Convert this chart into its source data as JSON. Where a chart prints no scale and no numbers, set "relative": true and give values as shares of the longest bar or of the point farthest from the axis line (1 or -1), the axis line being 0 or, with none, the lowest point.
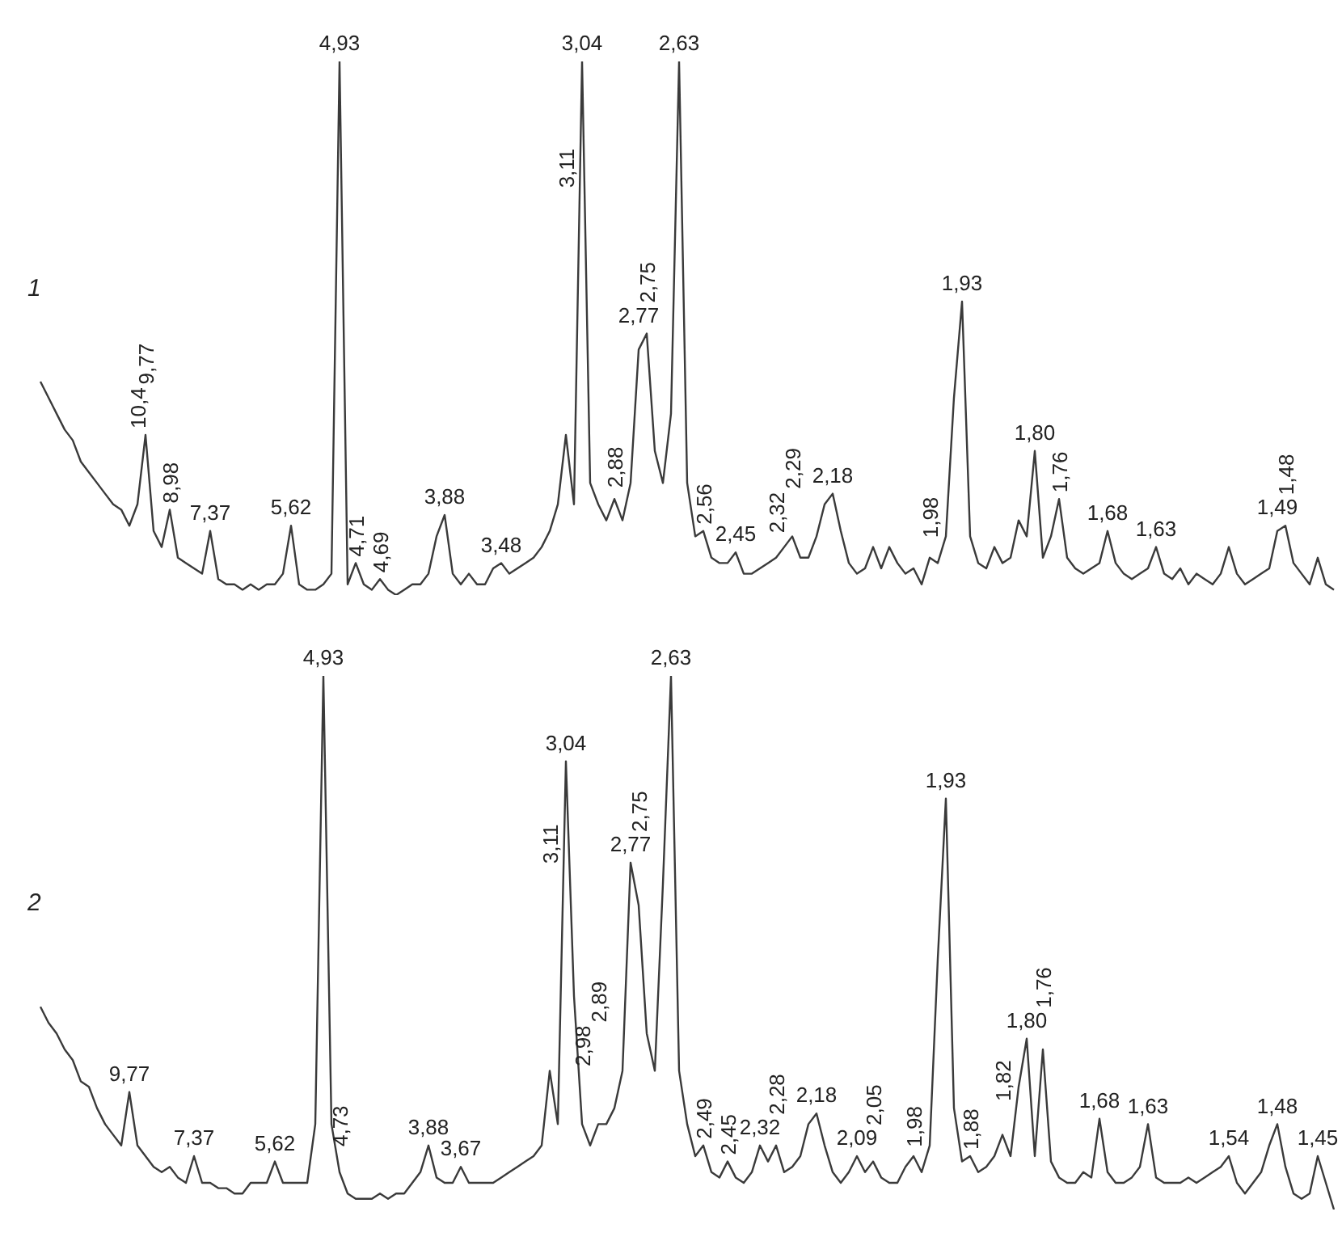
{
  "chart_data": [
    {
      "type": "line",
      "relative": true,
      "legend": false,
      "marker": "none",
      "annotations": [
        "1"
      ],
      "categories": [
        null,
        null,
        null,
        null,
        null,
        null,
        null,
        null,
        null,
        null,
        null,
        null,
        "10,4",
        "9,77",
        null,
        null,
        "8,98",
        null,
        null,
        null,
        null,
        "7,37",
        null,
        null,
        null,
        null,
        null,
        null,
        null,
        null,
        null,
        "5,62",
        null,
        null,
        null,
        null,
        null,
        "4,93",
        null,
        "4,71",
        null,
        null,
        "4,69",
        null,
        null,
        null,
        null,
        null,
        null,
        null,
        "3,88",
        null,
        null,
        null,
        null,
        null,
        null,
        "3,48",
        null,
        null,
        null,
        null,
        null,
        null,
        null,
        "3,11",
        null,
        "3,04",
        null,
        null,
        null,
        "2,88",
        null,
        null,
        "2,77",
        "2,75",
        null,
        null,
        null,
        "2,63",
        null,
        null,
        "2,56",
        null,
        null,
        null,
        "2,45",
        null,
        null,
        null,
        null,
        "2,32",
        null,
        "2,29",
        null,
        null,
        null,
        null,
        "2,18",
        null,
        null,
        null,
        null,
        null,
        null,
        null,
        null,
        null,
        null,
        null,
        "1,98",
        null,
        null,
        null,
        "1,93",
        null,
        null,
        null,
        null,
        null,
        null,
        null,
        null,
        "1,80",
        null,
        null,
        "1,76",
        null,
        null,
        null,
        null,
        null,
        "1,68",
        null,
        null,
        null,
        null,
        null,
        "1,63",
        null,
        null,
        null,
        null,
        null,
        null,
        null,
        null,
        null,
        null,
        null,
        null,
        null,
        null,
        "1,49",
        "1,48",
        null,
        null,
        null,
        null,
        null,
        null
      ],
      "series": [
        {
          "color": "#3a3a3a",
          "values": [
            0.4,
            0.37,
            0.34,
            0.31,
            0.29,
            0.25,
            0.23,
            0.21,
            0.19,
            0.17,
            0.16,
            0.13,
            0.17,
            0.3,
            0.12,
            0.09,
            0.16,
            0.07,
            0.06,
            0.05,
            0.04,
            0.12,
            0.03,
            0.02,
            0.02,
            0.01,
            0.02,
            0.01,
            0.02,
            0.02,
            0.04,
            0.13,
            0.02,
            0.01,
            0.01,
            0.02,
            0.04,
            1,
            0.02,
            0.06,
            0.02,
            0.01,
            0.03,
            0.01,
            0,
            0.01,
            0.02,
            0.02,
            0.04,
            0.11,
            0.15,
            0.04,
            0.02,
            0.04,
            0.02,
            0.02,
            0.05,
            0.06,
            0.04,
            0.05,
            0.06,
            0.07,
            0.09,
            0.12,
            0.17,
            0.3,
            0.17,
            1,
            0.21,
            0.17,
            0.14,
            0.18,
            0.14,
            0.21,
            0.46,
            0.49,
            0.27,
            0.21,
            0.34,
            1,
            0.21,
            0.11,
            0.12,
            0.07,
            0.06,
            0.06,
            0.08,
            0.04,
            0.04,
            0.05,
            0.06,
            0.07,
            0.09,
            0.11,
            0.07,
            0.07,
            0.11,
            0.17,
            0.19,
            0.12,
            0.06,
            0.04,
            0.05,
            0.09,
            0.05,
            0.09,
            0.06,
            0.04,
            0.05,
            0.02,
            0.07,
            0.06,
            0.11,
            0.37,
            0.55,
            0.11,
            0.06,
            0.05,
            0.09,
            0.06,
            0.07,
            0.14,
            0.11,
            0.27,
            0.07,
            0.11,
            0.18,
            0.07,
            0.05,
            0.04,
            0.05,
            0.06,
            0.12,
            0.06,
            0.04,
            0.03,
            0.04,
            0.05,
            0.09,
            0.04,
            0.03,
            0.05,
            0.02,
            0.04,
            0.03,
            0.02,
            0.04,
            0.09,
            0.04,
            0.02,
            0.03,
            0.04,
            0.05,
            0.12,
            0.13,
            0.06,
            0.04,
            0.02,
            0.07,
            0.02,
            0.01
          ]
        }
      ]
    },
    {
      "type": "line",
      "relative": true,
      "legend": false,
      "marker": "none",
      "annotations": [
        "2"
      ],
      "categories": [
        null,
        null,
        null,
        null,
        null,
        null,
        null,
        null,
        null,
        null,
        null,
        "9,77",
        null,
        null,
        null,
        null,
        null,
        null,
        null,
        "7,37",
        null,
        null,
        null,
        null,
        null,
        null,
        null,
        null,
        null,
        "5,62",
        null,
        null,
        null,
        null,
        null,
        "4,93",
        null,
        "4,73",
        null,
        null,
        null,
        null,
        null,
        null,
        null,
        null,
        null,
        null,
        "3,88",
        null,
        null,
        null,
        "3,67",
        null,
        null,
        null,
        null,
        null,
        null,
        null,
        null,
        null,
        null,
        "3,11",
        null,
        "3,04",
        null,
        "2,98",
        null,
        "2,89",
        null,
        null,
        null,
        "2,77",
        "2,75",
        null,
        null,
        null,
        "2,63",
        null,
        null,
        null,
        "2,49",
        null,
        null,
        "2,45",
        null,
        null,
        null,
        "2,32",
        null,
        "2,28",
        null,
        null,
        null,
        null,
        "2,18",
        null,
        null,
        null,
        null,
        "2,09",
        null,
        "2,05",
        null,
        null,
        null,
        null,
        "1,98",
        null,
        null,
        null,
        "1,93",
        null,
        null,
        "1,88",
        null,
        null,
        null,
        "1,82",
        null,
        null,
        "1,80",
        null,
        "1,76",
        null,
        null,
        null,
        null,
        null,
        null,
        "1,68",
        null,
        null,
        null,
        null,
        null,
        "1,63",
        null,
        null,
        null,
        null,
        null,
        null,
        null,
        null,
        null,
        "1,54",
        null,
        null,
        null,
        null,
        null,
        "1,48",
        null,
        null,
        null,
        null,
        "1,45",
        null,
        null
      ],
      "series": [
        {
          "color": "#3a3a3a",
          "values": [
            0.38,
            0.35,
            0.33,
            0.3,
            0.28,
            0.24,
            0.23,
            0.19,
            0.16,
            0.14,
            0.12,
            0.22,
            0.12,
            0.1,
            0.08,
            0.07,
            0.08,
            0.06,
            0.05,
            0.1,
            0.05,
            0.05,
            0.04,
            0.04,
            0.03,
            0.03,
            0.05,
            0.05,
            0.05,
            0.09,
            0.05,
            0.05,
            0.05,
            0.05,
            0.16,
            1,
            0.16,
            0.07,
            0.03,
            0.02,
            0.02,
            0.02,
            0.03,
            0.02,
            0.03,
            0.03,
            0.05,
            0.07,
            0.12,
            0.06,
            0.05,
            0.05,
            0.08,
            0.05,
            0.05,
            0.05,
            0.05,
            0.06,
            0.07,
            0.08,
            0.09,
            0.1,
            0.12,
            0.26,
            0.16,
            0.84,
            0.4,
            0.16,
            0.12,
            0.16,
            0.16,
            0.19,
            0.26,
            0.65,
            0.57,
            0.33,
            0.26,
            0.61,
            1,
            0.26,
            0.16,
            0.1,
            0.12,
            0.07,
            0.06,
            0.09,
            0.06,
            0.05,
            0.07,
            0.12,
            0.09,
            0.12,
            0.07,
            0.08,
            0.1,
            0.16,
            0.18,
            0.12,
            0.07,
            0.05,
            0.07,
            0.1,
            0.07,
            0.09,
            0.06,
            0.05,
            0.05,
            0.08,
            0.1,
            0.07,
            0.12,
            0.47,
            0.77,
            0.19,
            0.09,
            0.1,
            0.07,
            0.08,
            0.1,
            0.14,
            0.1,
            0.23,
            0.32,
            0.1,
            0.3,
            0.09,
            0.06,
            0.05,
            0.05,
            0.07,
            0.06,
            0.17,
            0.07,
            0.05,
            0.05,
            0.06,
            0.08,
            0.16,
            0.06,
            0.05,
            0.05,
            0.05,
            0.06,
            0.05,
            0.06,
            0.07,
            0.08,
            0.1,
            0.05,
            0.03,
            0.05,
            0.07,
            0.12,
            0.16,
            0.08,
            0.03,
            0.02,
            0.03,
            0.1,
            0.05,
            0
          ]
        }
      ]
    }
  ]
}
